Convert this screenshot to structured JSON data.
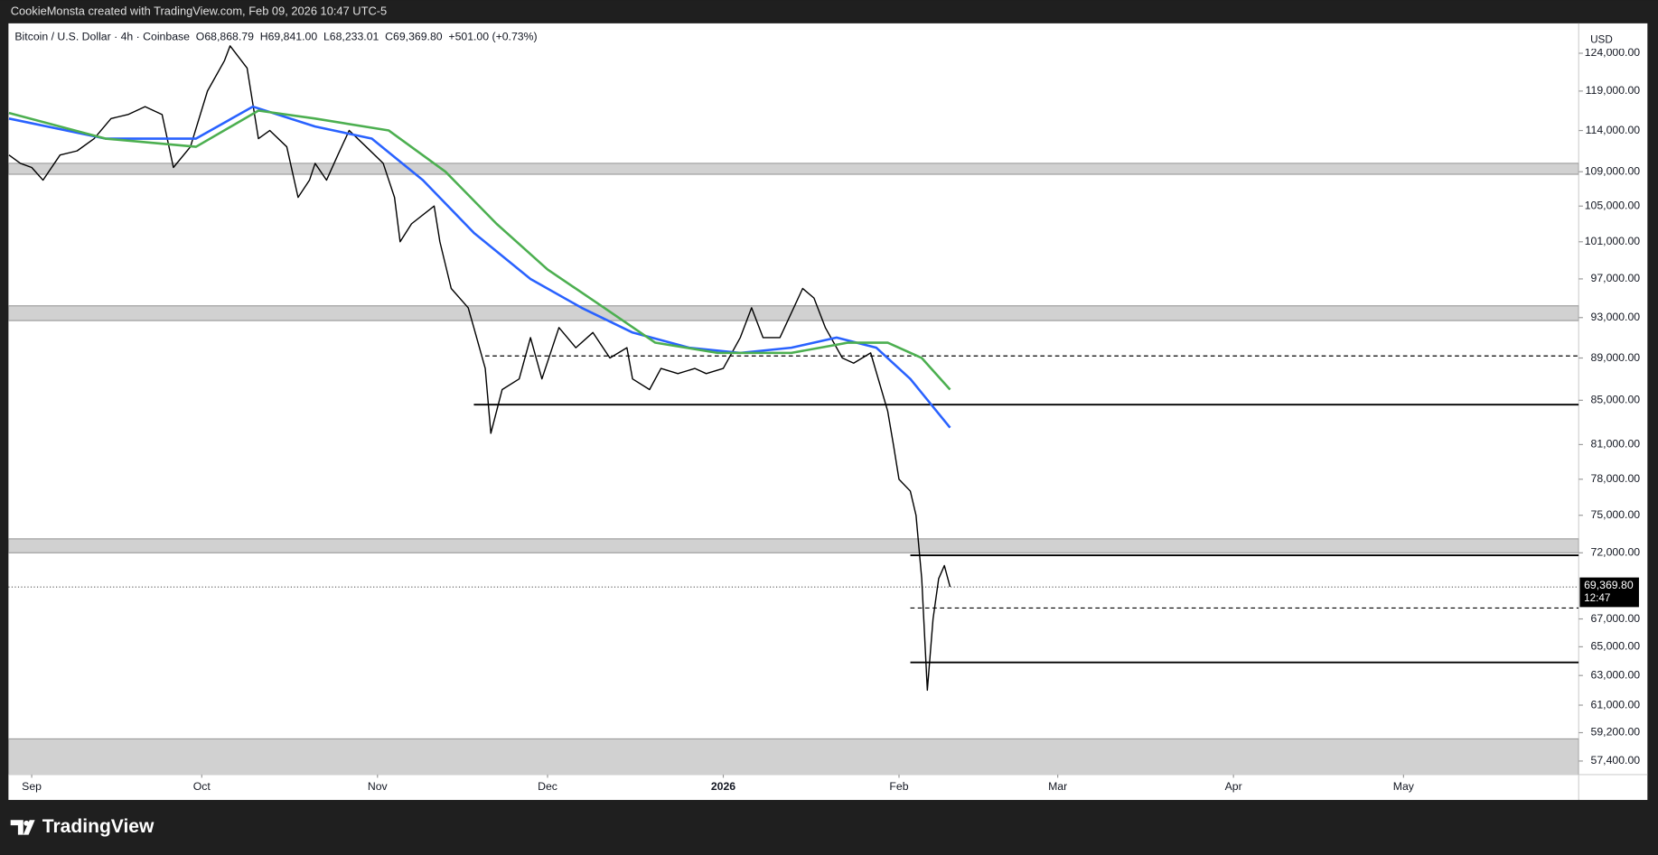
{
  "chart_data": {
    "type": "line",
    "header": "CookieMonsta created with TradingView.com, Feb 09, 2026 10:47 UTC-5",
    "legend_text": "Bitcoin / U.S. Dollar · 4h · Coinbase  O68,868.79  H69,841.00  L68,233.01  C69,369.80  +501.00 (+0.73%)",
    "axis_unit": "USD",
    "brand": "TradingView",
    "log_scale": true,
    "grid": false,
    "xlim": [
      -4.1,
      272.9
    ],
    "xticks": [
      {
        "value": 0,
        "label": "Sep"
      },
      {
        "value": 30,
        "label": "Oct"
      },
      {
        "value": 61,
        "label": "Nov"
      },
      {
        "value": 91,
        "label": "Dec"
      },
      {
        "value": 122,
        "label": "2026"
      },
      {
        "value": 153,
        "label": "Feb"
      },
      {
        "value": 181,
        "label": "Mar"
      },
      {
        "value": 212,
        "label": "Apr"
      },
      {
        "value": 242,
        "label": "May"
      }
    ],
    "ylim": [
      56560,
      128100
    ],
    "yticks": [
      {
        "value": 124000,
        "label": "124,000.00"
      },
      {
        "value": 119000,
        "label": "119,000.00"
      },
      {
        "value": 114000,
        "label": "114,000.00"
      },
      {
        "value": 109000,
        "label": "109,000.00"
      },
      {
        "value": 105000,
        "label": "105,000.00"
      },
      {
        "value": 101000,
        "label": "101,000.00"
      },
      {
        "value": 97000,
        "label": "97,000.00"
      },
      {
        "value": 93000,
        "label": "93,000.00"
      },
      {
        "value": 89000,
        "label": "89,000.00"
      },
      {
        "value": 85000,
        "label": "85,000.00"
      },
      {
        "value": 81000,
        "label": "81,000.00"
      },
      {
        "value": 78000,
        "label": "78,000.00"
      },
      {
        "value": 75000,
        "label": "75,000.00"
      },
      {
        "value": 72000,
        "label": "72,000.00"
      },
      {
        "value": 67000,
        "label": "67,000.00"
      },
      {
        "value": 65000,
        "label": "65,000.00"
      },
      {
        "value": 63000,
        "label": "63,000.00"
      },
      {
        "value": 61000,
        "label": "61,000.00"
      },
      {
        "value": 59200,
        "label": "59,200.00"
      },
      {
        "value": 57400,
        "label": "57,400.00"
      }
    ],
    "series": [
      {
        "color": "#000000",
        "x": [
          -4,
          -2,
          0,
          2,
          5,
          8,
          11,
          14,
          17,
          20,
          23,
          25,
          28,
          31,
          34,
          35,
          38,
          40,
          42,
          45,
          47,
          49,
          50,
          52,
          54,
          56,
          59,
          62,
          64,
          65,
          67,
          71,
          72,
          74,
          77,
          78,
          80,
          81,
          83,
          86,
          88,
          90,
          93,
          96,
          99,
          102,
          105,
          106,
          109,
          111,
          114,
          117,
          119,
          122,
          125,
          127,
          129,
          132,
          136,
          138,
          140,
          143,
          145,
          148,
          151,
          152,
          153,
          155,
          156,
          157,
          158,
          159,
          160,
          161,
          162
        ],
        "values": [
          111000,
          110000,
          109500,
          108000,
          111000,
          111500,
          113000,
          115500,
          116000,
          117000,
          116000,
          109500,
          112000,
          119000,
          123000,
          125000,
          122000,
          113000,
          114000,
          112000,
          106000,
          108000,
          110000,
          108000,
          111000,
          114000,
          112000,
          110000,
          106000,
          101000,
          103000,
          105000,
          101000,
          96000,
          94000,
          92000,
          88000,
          82000,
          86000,
          87000,
          91000,
          87000,
          92000,
          90000,
          91500,
          89000,
          90000,
          87000,
          86000,
          88000,
          87500,
          88000,
          87500,
          88000,
          91000,
          94000,
          91000,
          91000,
          96000,
          95000,
          92000,
          89000,
          88500,
          89500,
          84000,
          81000,
          78000,
          77000,
          75000,
          70000,
          62000,
          67000,
          70000,
          71000,
          69370
        ]
      },
      {
        "color": "#2962ff",
        "x": [
          -4,
          13,
          29,
          39,
          50,
          60,
          69,
          78,
          88,
          97,
          106,
          116,
          125,
          134,
          142,
          149,
          155,
          162
        ],
        "values": [
          115500,
          113000,
          113000,
          117000,
          114500,
          113000,
          108000,
          102000,
          97000,
          94000,
          91500,
          90000,
          89500,
          90000,
          91000,
          90000,
          87000,
          82500
        ]
      },
      {
        "color": "#4caf50",
        "x": [
          -4,
          13,
          29,
          40,
          50,
          63,
          73,
          82,
          91,
          101,
          110,
          121,
          134,
          144,
          151,
          157,
          162
        ],
        "values": [
          116200,
          113000,
          112000,
          116500,
          115500,
          114000,
          109000,
          103000,
          98000,
          94000,
          90500,
          89500,
          89500,
          90500,
          90500,
          89000,
          86000
        ]
      }
    ],
    "zones": [
      {
        "from": 108700,
        "to": 110000
      },
      {
        "from": 92700,
        "to": 94200
      },
      {
        "from": 72000,
        "to": 73100
      },
      {
        "from": 56000,
        "to": 58800
      }
    ],
    "levels": [
      {
        "value": 84600,
        "style": "solid",
        "from_x": 78
      },
      {
        "value": 89200,
        "style": "dashed",
        "from_x": 80
      },
      {
        "value": 71800,
        "style": "solid",
        "from_x": 155
      },
      {
        "value": 67800,
        "style": "dashed",
        "from_x": 155
      },
      {
        "value": 63900,
        "style": "solid",
        "from_x": 155
      }
    ],
    "last_price": {
      "value": 69369.8,
      "label": "69,369.80",
      "countdown": "12:47"
    }
  }
}
